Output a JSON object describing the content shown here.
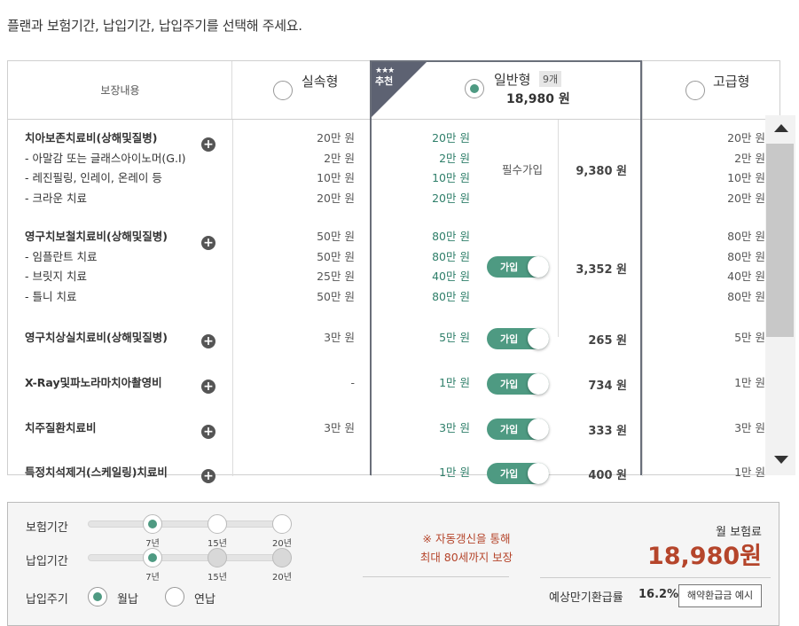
{
  "instruction": "플랜과 보험기간, 납입기간, 납입주기를 선택해 주세요.",
  "header": {
    "coverage_label": "보장내용",
    "plans": [
      {
        "name": "실속형",
        "selected": false
      },
      {
        "name": "일반형",
        "selected": true,
        "badge": "9개",
        "price": "18,980 원",
        "ribbon_stars": "★★★",
        "ribbon_text": "추천"
      },
      {
        "name": "고급형",
        "selected": false
      }
    ]
  },
  "rows": [
    {
      "lines": [
        "치아보존치료비(상해및질병)",
        "- 아말감 또는 글래스아이노머(G.I)",
        "- 레진필링, 인레이, 온레이 등",
        "- 크라운 치료"
      ],
      "basic": [
        "20만 원",
        "2만 원",
        "10만 원",
        "20만 원"
      ],
      "standard": [
        "20만 원",
        "2만 원",
        "10만 원",
        "20만 원"
      ],
      "premium": [
        "20만 원",
        "2만 원",
        "10만 원",
        "20만 원"
      ],
      "join": "필수가입",
      "toggle": false,
      "amount": "9,380 원"
    },
    {
      "lines": [
        "영구치보철치료비(상해및질병)",
        "- 임플란트 치료",
        "- 브릿지 치료",
        "- 틀니 치료"
      ],
      "basic": [
        "50만 원",
        "50만 원",
        "25만 원",
        "50만 원"
      ],
      "standard": [
        "80만 원",
        "80만 원",
        "40만 원",
        "80만 원"
      ],
      "premium": [
        "80만 원",
        "80만 원",
        "40만 원",
        "80만 원"
      ],
      "toggle": true,
      "toggle_label": "가입",
      "amount": "3,352 원"
    },
    {
      "lines": [
        "영구치상실치료비(상해및질병)"
      ],
      "basic": [
        "3만 원"
      ],
      "standard": [
        "5만 원"
      ],
      "premium": [
        "5만 원"
      ],
      "toggle": true,
      "toggle_label": "가입",
      "amount": "265 원"
    },
    {
      "lines": [
        "X-Ray및파노라마치아촬영비"
      ],
      "basic": [
        "-"
      ],
      "standard": [
        "1만 원"
      ],
      "premium": [
        "1만 원"
      ],
      "toggle": true,
      "toggle_label": "가입",
      "amount": "734 원"
    },
    {
      "lines": [
        "치주질환치료비"
      ],
      "basic": [
        "3만 원"
      ],
      "standard": [
        "3만 원"
      ],
      "premium": [
        "3만 원"
      ],
      "toggle": true,
      "toggle_label": "가입",
      "amount": "333 원"
    },
    {
      "lines": [
        "특정치석제거(스케일링)치료비"
      ],
      "basic": [
        ""
      ],
      "standard": [
        "1만 원"
      ],
      "premium": [
        "1만 원"
      ],
      "toggle": true,
      "toggle_label": "가입",
      "amount": "400 원"
    }
  ],
  "bottom": {
    "insurance_period": {
      "label": "보험기간",
      "options": [
        "7년",
        "15년",
        "20년"
      ],
      "selected": "7년"
    },
    "payment_period": {
      "label": "납입기간",
      "options": [
        "7년",
        "15년",
        "20년"
      ],
      "selected": "7년"
    },
    "payment_cycle": {
      "label": "납입주기",
      "options": [
        "월납",
        "연납"
      ],
      "selected": "월납"
    },
    "notice_line1": "※ 자동갱신을 통해",
    "notice_line2": "최대 80세까지 보장",
    "monthly_label": "월 보험료",
    "monthly_amount": "18,980원",
    "refund_label": "예상만기환급률",
    "refund_rate": "16.2%",
    "refund_button": "해약환급금 예시"
  },
  "colors": {
    "accent_green": "#4e9a82",
    "accent_red": "#b5452b",
    "ribbon": "#5d6272"
  }
}
